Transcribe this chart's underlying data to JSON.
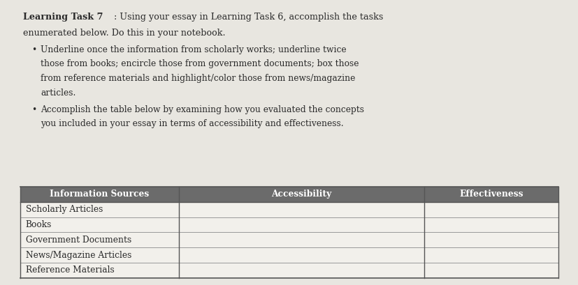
{
  "page_bg": "#e8e6e0",
  "title_bold": "Learning Task 7",
  "title_rest_line1": ": Using your essay in Learning Task 6, accomplish the tasks",
  "title_rest_line2": "enumerated below. Do this in your notebook.",
  "bullet1_lines": [
    "Underline once the information from scholarly works; underline twice",
    "those from books; encircle those from government documents; box those",
    "from reference materials and highlight/color those from news/magazine",
    "articles."
  ],
  "bullet2_lines": [
    "Accomplish the table below by examining how you evaluated the concepts",
    "you included in your essay in terms of accessibility and effectiveness."
  ],
  "table_header": [
    "Information Sources",
    "Accessibility",
    "Effectiveness"
  ],
  "table_rows": [
    "Scholarly Articles",
    "Books",
    "Government Documents",
    "News/Magazine Articles",
    "Reference Materials"
  ],
  "header_bg": "#6b6b6b",
  "header_text_color": "#ffffff",
  "row_bg": "#f2f0eb",
  "row_line_color": "#999999",
  "table_border_color": "#555555",
  "text_color": "#2a2a2a",
  "title_fontsize": 9.2,
  "body_fontsize": 8.8,
  "table_fontsize": 8.8
}
